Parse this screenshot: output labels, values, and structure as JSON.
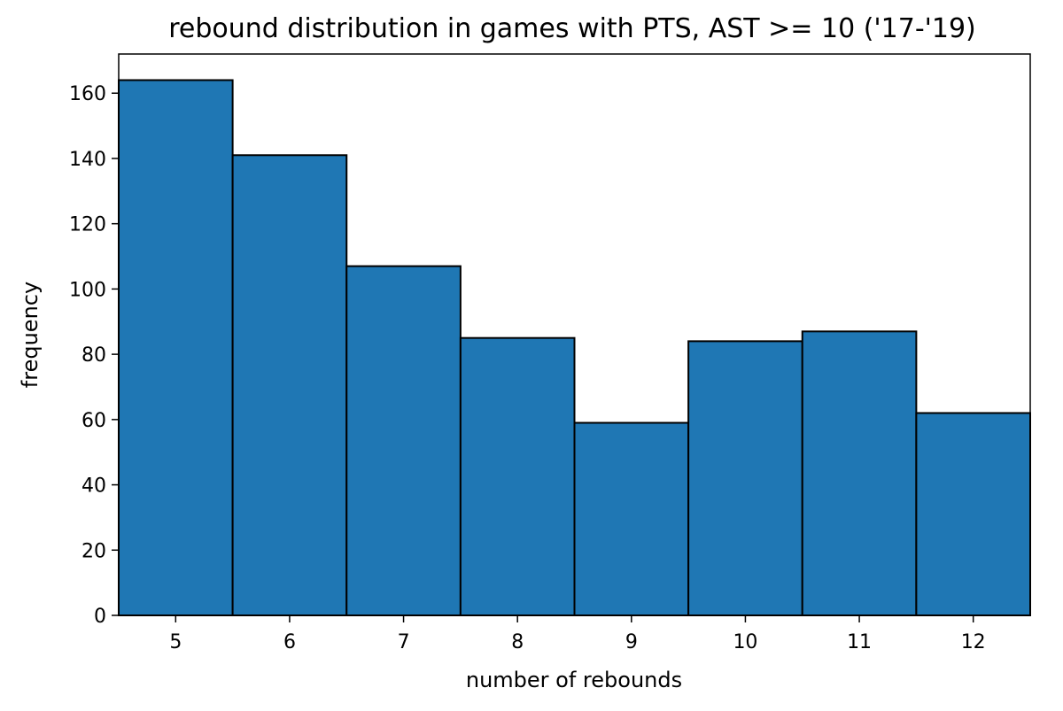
{
  "chart_data": {
    "type": "bar",
    "title": "rebound distribution in games with PTS, AST >= 10 ('17-'19)",
    "xlabel": "number of rebounds",
    "ylabel": "frequency",
    "categories": [
      "5",
      "6",
      "7",
      "8",
      "9",
      "10",
      "11",
      "12"
    ],
    "x": [
      5,
      6,
      7,
      8,
      9,
      10,
      11,
      12
    ],
    "values": [
      164,
      141,
      107,
      85,
      59,
      84,
      87,
      62
    ],
    "xlim": [
      4.5,
      12.5
    ],
    "ylim": [
      0,
      172
    ],
    "yticks": [
      0,
      20,
      40,
      60,
      80,
      100,
      120,
      140,
      160
    ],
    "grid": false,
    "bar_color": "#1f77b4",
    "edge_color": "#000000"
  }
}
